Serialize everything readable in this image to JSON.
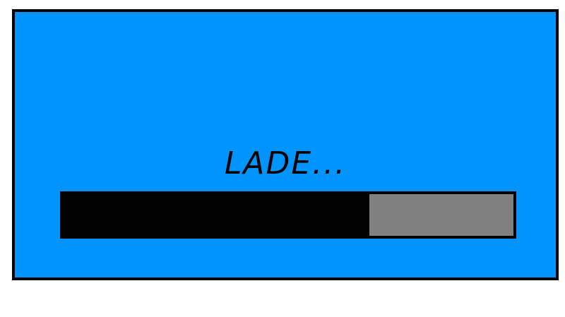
{
  "loading": {
    "label": "LADE...",
    "progress_fraction": 0.68
  },
  "colors": {
    "screen_bg": "#0094ff",
    "border": "#000000",
    "progress_fill": "#000000",
    "progress_track": "#808080"
  }
}
